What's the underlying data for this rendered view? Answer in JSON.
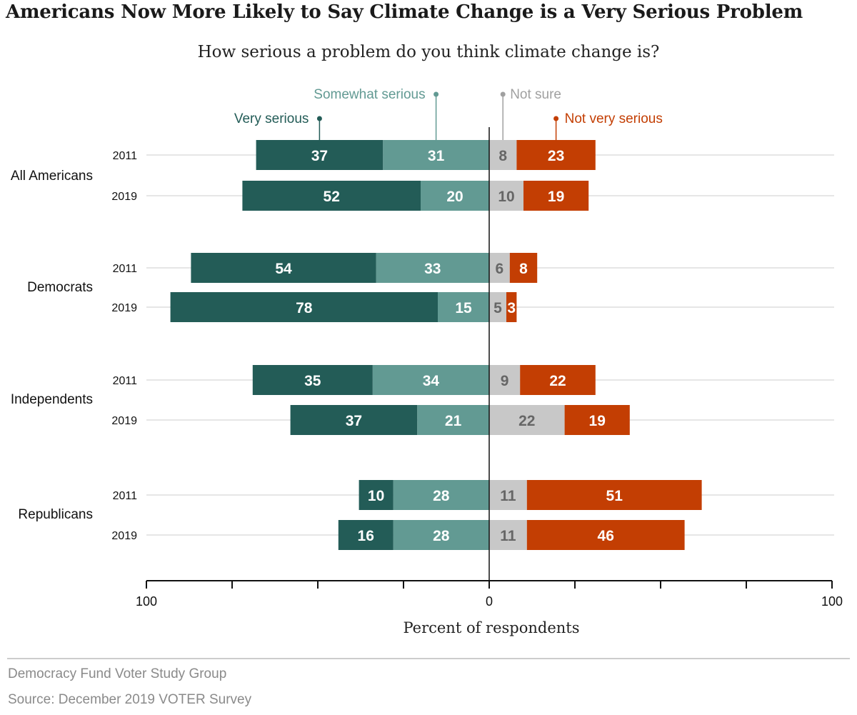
{
  "title": "Americans Now More Likely to Say Climate Change is a Very Serious Problem",
  "subtitle": "How serious a problem do you think climate change is?",
  "footer": {
    "org": "Democracy Fund Voter Study Group",
    "source": "Source: December 2019 VOTER Survey"
  },
  "colors": {
    "very_serious": "#235c57",
    "somewhat_serious": "#629a93",
    "not_sure": "#c8c8c8",
    "not_very_serious": "#c33e03",
    "gridline": "#dddddd"
  },
  "chart_data": {
    "type": "bar",
    "orientation": "horizontal-diverging-stacked",
    "xlabel": "Percent of respondents",
    "xlim": [
      -100,
      100
    ],
    "x_tick_labels": [
      {
        "value": -100,
        "label": "100"
      },
      {
        "value": 0,
        "label": "0"
      },
      {
        "value": 100,
        "label": "100"
      }
    ],
    "x_ticks": [
      -100,
      -75,
      -50,
      -25,
      0,
      25,
      50,
      75,
      100
    ],
    "grid": "horizontal",
    "series": [
      {
        "name": "Very serious",
        "key": "very_serious",
        "side": "left"
      },
      {
        "name": "Somewhat serious",
        "key": "somewhat_serious",
        "side": "left"
      },
      {
        "name": "Not sure",
        "key": "not_sure",
        "side": "right"
      },
      {
        "name": "Not very serious",
        "key": "not_very_serious",
        "side": "right"
      }
    ],
    "groups": [
      {
        "name": "All Americans",
        "rows": [
          {
            "year": "2011",
            "very_serious": 37,
            "somewhat_serious": 31,
            "not_sure": 8,
            "not_very_serious": 23
          },
          {
            "year": "2019",
            "very_serious": 52,
            "somewhat_serious": 20,
            "not_sure": 10,
            "not_very_serious": 19
          }
        ]
      },
      {
        "name": "Democrats",
        "rows": [
          {
            "year": "2011",
            "very_serious": 54,
            "somewhat_serious": 33,
            "not_sure": 6,
            "not_very_serious": 8
          },
          {
            "year": "2019",
            "very_serious": 78,
            "somewhat_serious": 15,
            "not_sure": 5,
            "not_very_serious": 3
          }
        ]
      },
      {
        "name": "Independents",
        "rows": [
          {
            "year": "2011",
            "very_serious": 35,
            "somewhat_serious": 34,
            "not_sure": 9,
            "not_very_serious": 22
          },
          {
            "year": "2019",
            "very_serious": 37,
            "somewhat_serious": 21,
            "not_sure": 22,
            "not_very_serious": 19
          }
        ]
      },
      {
        "name": "Republicans",
        "rows": [
          {
            "year": "2011",
            "very_serious": 10,
            "somewhat_serious": 28,
            "not_sure": 11,
            "not_very_serious": 51
          },
          {
            "year": "2019",
            "very_serious": 16,
            "somewhat_serious": 28,
            "not_sure": 11,
            "not_very_serious": 46
          }
        ]
      }
    ]
  }
}
